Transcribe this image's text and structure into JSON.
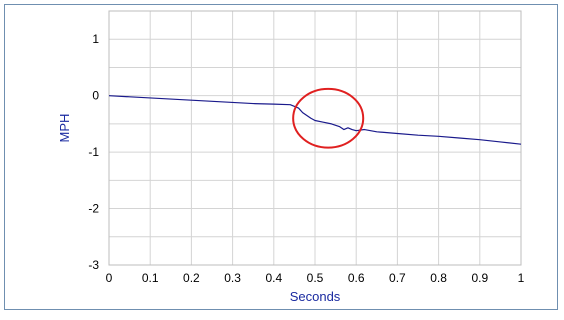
{
  "chart_data": {
    "type": "line",
    "title": "",
    "xlabel": "Seconds",
    "ylabel": "MPH",
    "xlim": [
      0,
      1
    ],
    "ylim": [
      -3,
      1.5
    ],
    "xticks": [
      0,
      0.1,
      0.2,
      0.3,
      0.4,
      0.5,
      0.6,
      0.7,
      0.8,
      0.9,
      1
    ],
    "xtick_labels": [
      "0",
      "0.1",
      "0.2",
      "0.3",
      "0.4",
      "0.5",
      "0.6",
      "0.7",
      "0.8",
      "0.9",
      "1"
    ],
    "yticks": [
      1,
      0,
      -1,
      -2,
      -3
    ],
    "ytick_labels": [
      "1",
      "0",
      "-1",
      "-2",
      "-3"
    ],
    "grid": true,
    "legend": "none",
    "series": [
      {
        "color": "#1a1a8c",
        "x": [
          0,
          0.05,
          0.1,
          0.15,
          0.2,
          0.25,
          0.3,
          0.35,
          0.4,
          0.44,
          0.46,
          0.47,
          0.49,
          0.5,
          0.52,
          0.54,
          0.56,
          0.57,
          0.58,
          0.59,
          0.6,
          0.62,
          0.65,
          0.7,
          0.75,
          0.8,
          0.85,
          0.9,
          0.95,
          1.0
        ],
        "y": [
          0.0,
          -0.02,
          -0.04,
          -0.06,
          -0.08,
          -0.1,
          -0.12,
          -0.14,
          -0.15,
          -0.16,
          -0.22,
          -0.3,
          -0.4,
          -0.44,
          -0.47,
          -0.5,
          -0.55,
          -0.6,
          -0.57,
          -0.6,
          -0.62,
          -0.6,
          -0.64,
          -0.67,
          -0.7,
          -0.72,
          -0.75,
          -0.78,
          -0.82,
          -0.86
        ]
      }
    ],
    "annotations": [
      {
        "type": "ellipse",
        "color": "#e02020",
        "x_center": 0.532,
        "y_center": -0.4,
        "x_radius": 0.085,
        "y_radius": 0.52
      }
    ]
  }
}
